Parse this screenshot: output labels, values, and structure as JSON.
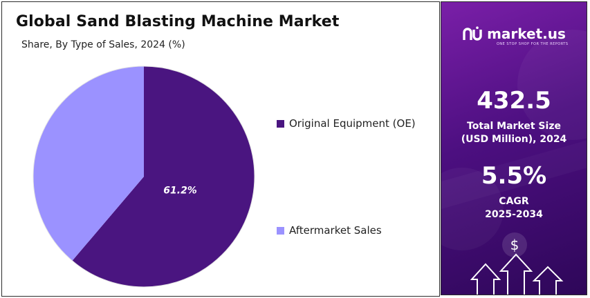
{
  "chart_data": {
    "type": "pie",
    "title": "Global Sand Blasting Machine Market",
    "subtitle": "Share, By Type of Sales, 2024 (%)",
    "slices": [
      {
        "label": "Original Equipment (OE)",
        "value": 61.2,
        "color": "#4a1580",
        "data_label": "61.2%"
      },
      {
        "label": "Aftermarket Sales",
        "value": 38.8,
        "color": "#9b92ff",
        "data_label": ""
      }
    ],
    "legend_position": "right"
  },
  "sidebar": {
    "brand": "market.us",
    "tagline": "ONE STOP SHOP FOR THE REPORTS",
    "market_size_value": "432.5",
    "market_size_label_line1": "Total Market Size",
    "market_size_label_line2": "(USD Million), 2024",
    "cagr_value": "5.5%",
    "cagr_label_line1": "CAGR",
    "cagr_label_line2": "2025-2034",
    "currency_symbol": "$"
  }
}
